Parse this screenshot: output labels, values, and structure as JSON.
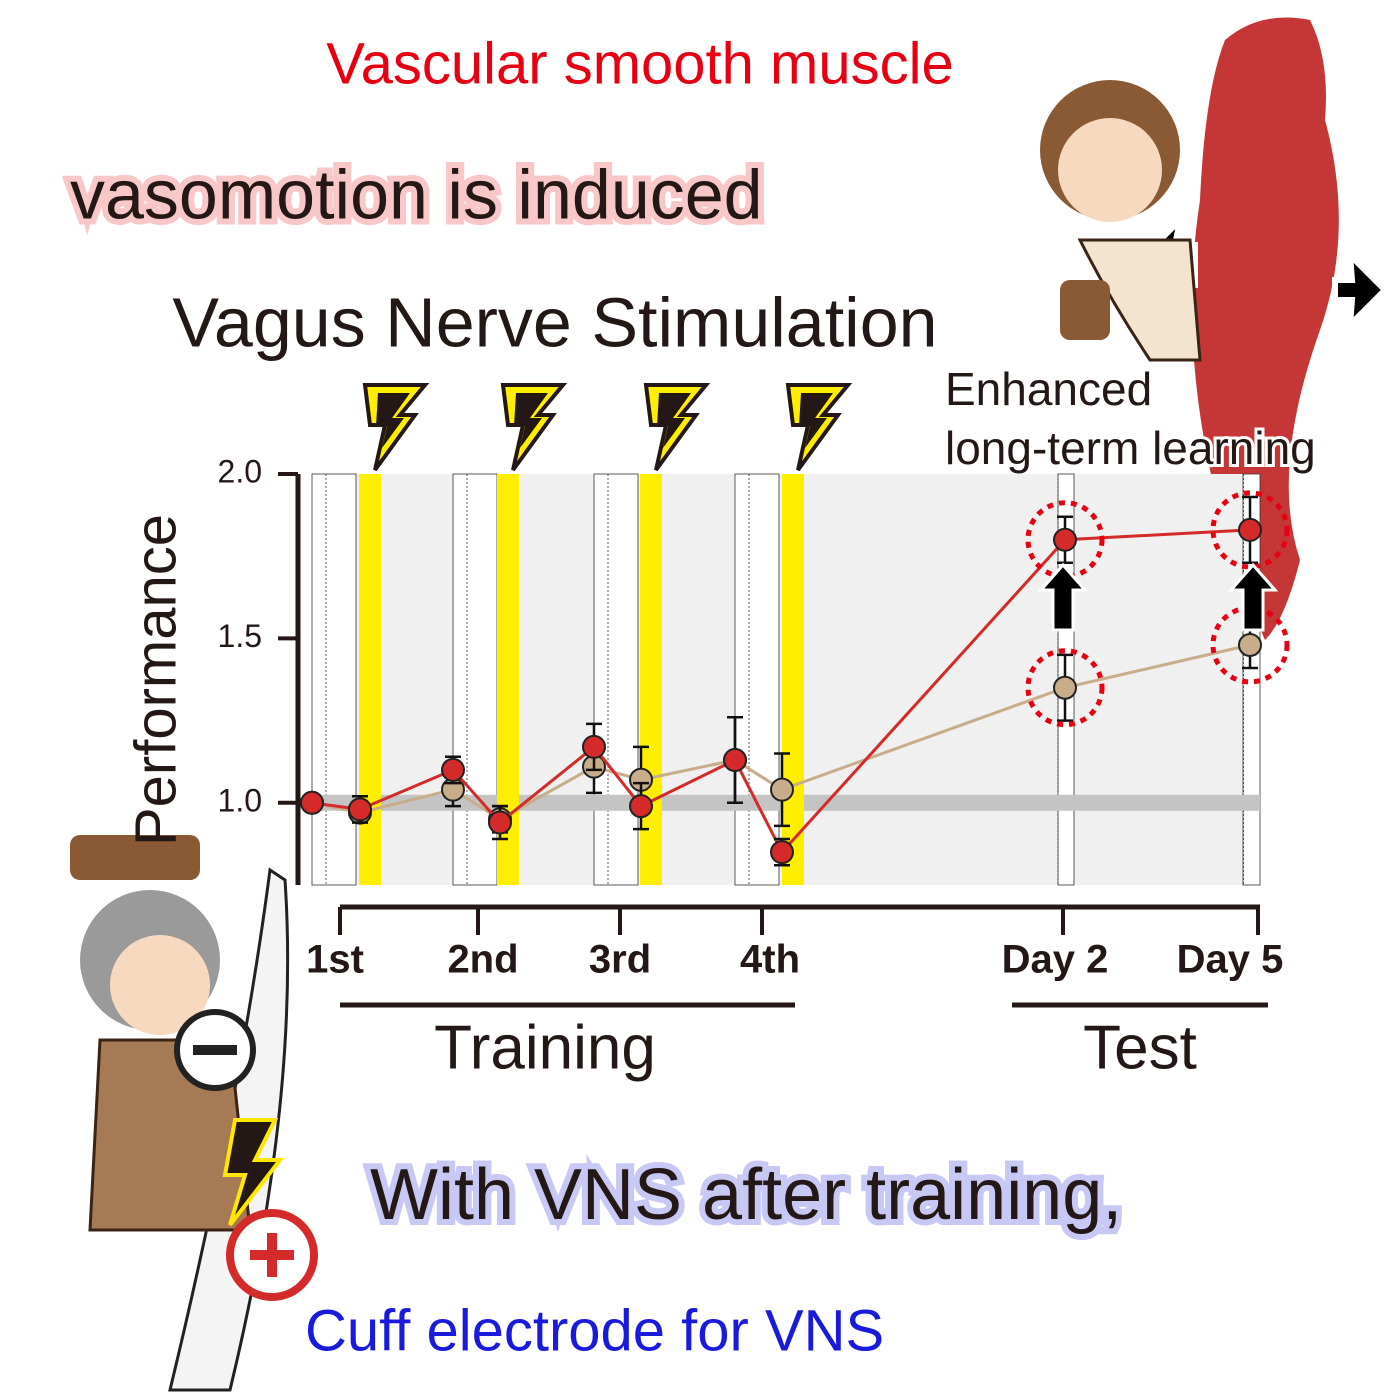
{
  "annotations": {
    "top": "Vascular smooth muscle",
    "headline": "vasomotion is induced",
    "note_line1": "Enhanced",
    "note_line2": "long-term learning",
    "bottom": "With VNS after training,",
    "electrode": "Cuff electrode for VNS"
  },
  "chart_data": {
    "type": "line",
    "title": "Vagus Nerve Stimulation",
    "ylabel": "Performance",
    "categories": [
      null,
      "1st",
      null,
      "2nd",
      null,
      "3rd",
      null,
      "4th",
      "Day 2",
      "Day 5"
    ],
    "groups": [
      "Training",
      "Test"
    ],
    "series": [
      {
        "color": "#c9ad8a",
        "values": [
          1.0,
          0.97,
          1.04,
          0.95,
          1.11,
          1.07,
          1.13,
          1.04,
          1.35,
          1.48
        ],
        "errors": [
          0,
          0.03,
          0.05,
          0.04,
          0.08,
          0.1,
          0.13,
          0.11,
          0.1,
          0.07
        ]
      },
      {
        "color": "#d42a2a",
        "values": [
          1.0,
          0.98,
          1.1,
          0.94,
          1.17,
          0.99,
          1.13,
          0.85,
          1.8,
          1.83
        ],
        "errors": [
          0,
          0.04,
          0.04,
          0.05,
          0.07,
          0.07,
          0.13,
          0.04,
          0.07,
          0.1
        ]
      }
    ],
    "reference_line": 1.0,
    "ylim": [
      0.75,
      2.0
    ],
    "yticks": [
      {
        "value": 1.0,
        "label": "1.0"
      },
      {
        "value": 1.5,
        "label": "1.5"
      },
      {
        "value": 2.0,
        "label": "2.0"
      }
    ]
  }
}
